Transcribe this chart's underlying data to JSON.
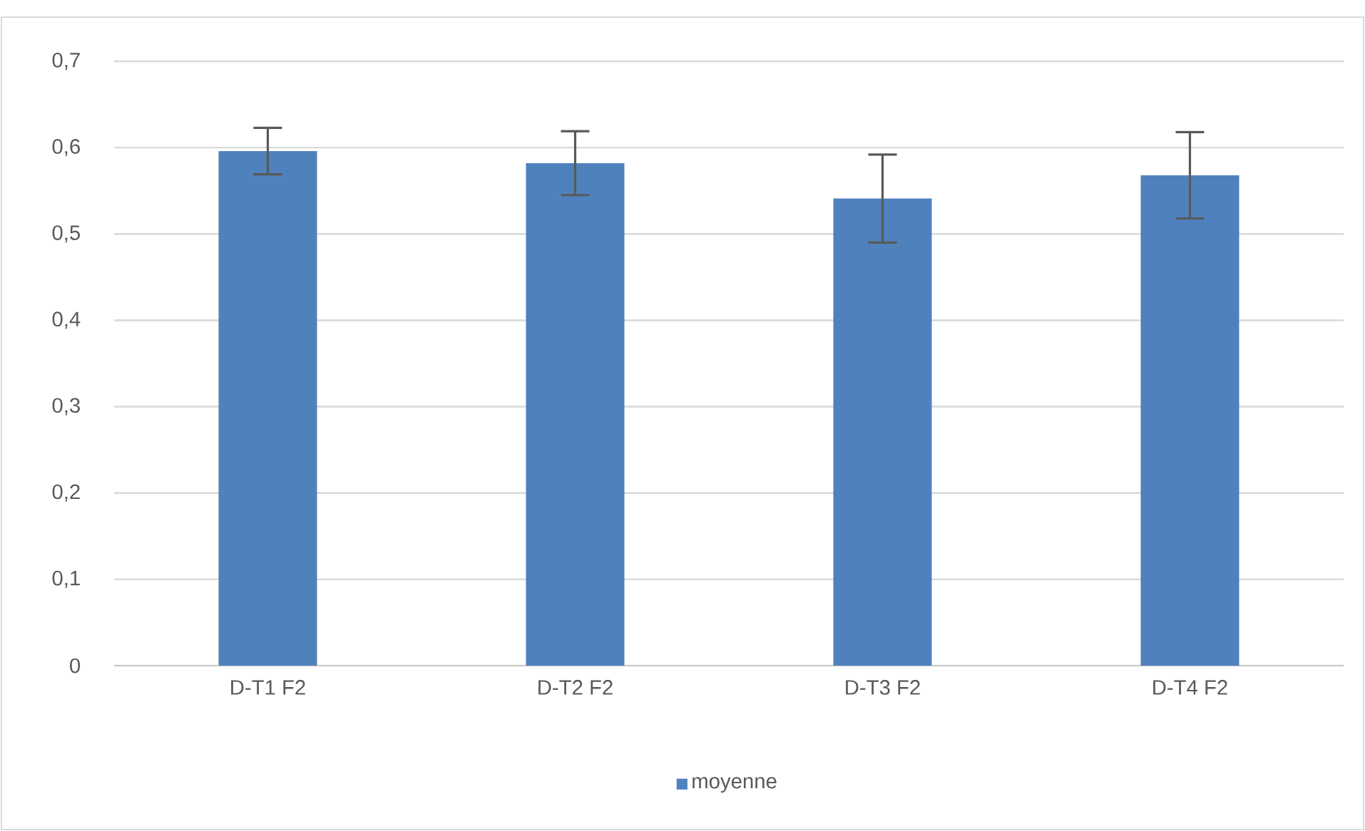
{
  "chart_data": {
    "type": "bar",
    "categories": [
      "D-T1 F2",
      "D-T2 F2",
      "D-T3 F2",
      "D-T4 F2"
    ],
    "series": [
      {
        "name": "moyenne",
        "color": "#4f81bd",
        "values": [
          0.596,
          0.582,
          0.541,
          0.568
        ],
        "errors": [
          0.027,
          0.037,
          0.051,
          0.05
        ]
      }
    ],
    "ylim": [
      0,
      0.7
    ],
    "yticks": [
      0,
      {
        "value": 0.1,
        "label": "0,1"
      },
      {
        "value": 0.2,
        "label": "0,2"
      },
      {
        "value": 0.3,
        "label": "0,3"
      },
      {
        "value": 0.4,
        "label": "0,4"
      },
      {
        "value": 0.5,
        "label": "0,5"
      },
      {
        "value": 0.6,
        "label": "0,6"
      },
      {
        "value": 0.7,
        "label": "0,7"
      }
    ],
    "grid": "y",
    "legend": "bottom"
  }
}
